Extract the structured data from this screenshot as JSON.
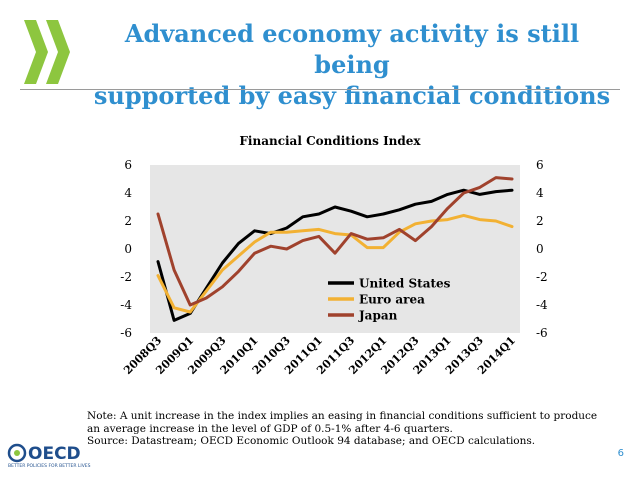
{
  "slide": {
    "title_line1": "Advanced economy activity is still being",
    "title_line2": "supported by easy financial conditions",
    "note_line1": "Note: A unit increase in the index implies an easing in financial conditions sufficient to produce",
    "note_line2": "an average increase in the level of GDP of 0.5-1% after 4-6 quarters.",
    "note_line3": "Source: Datastream; OECD Economic Outlook 94 database; and OECD calculations.",
    "logo_text": "OECD",
    "logo_tagline": "BETTER POLICIES FOR BETTER LIVES",
    "page_number": "6",
    "accent_color": "#2f8fcf"
  },
  "chart_data": {
    "type": "line",
    "title": "Financial Conditions Index",
    "xlabel": "",
    "ylabel": "",
    "ylim": [
      -6,
      6
    ],
    "yticks": [
      "6",
      "4",
      "2",
      "0",
      "-2",
      "-4",
      "-6"
    ],
    "grid": false,
    "legend_position": "bottom-right",
    "categories": [
      "2008Q3",
      "2008Q4",
      "2009Q1",
      "2009Q2",
      "2009Q3",
      "2009Q4",
      "2010Q1",
      "2010Q2",
      "2010Q3",
      "2010Q4",
      "2011Q1",
      "2011Q2",
      "2011Q3",
      "2011Q4",
      "2012Q1",
      "2012Q2",
      "2012Q3",
      "2012Q4",
      "2013Q1",
      "2013Q2",
      "2013Q3",
      "2013Q4",
      "2014Q1"
    ],
    "tick_labels": [
      "2008Q3",
      "2009Q1",
      "2009Q3",
      "2010Q1",
      "2010Q3",
      "2011Q1",
      "2011Q3",
      "2012Q1",
      "2012Q3",
      "2013Q1",
      "2013Q3",
      "2014Q1"
    ],
    "series": [
      {
        "name": "United States",
        "color": "#000000",
        "values": [
          -0.9,
          -5.1,
          -4.6,
          -2.8,
          -1.0,
          0.4,
          1.3,
          1.1,
          1.5,
          2.3,
          2.5,
          3.0,
          2.7,
          2.3,
          2.5,
          2.8,
          3.2,
          3.4,
          3.9,
          4.2,
          3.9,
          4.1,
          4.2
        ]
      },
      {
        "name": "Euro area",
        "color": "#f2b133",
        "values": [
          -1.9,
          -4.2,
          -4.5,
          -3.0,
          -1.5,
          -0.5,
          0.5,
          1.2,
          1.2,
          1.3,
          1.4,
          1.1,
          1.0,
          0.1,
          0.1,
          1.2,
          1.8,
          2.0,
          2.1,
          2.4,
          2.1,
          2.0,
          1.6
        ]
      },
      {
        "name": "Japan",
        "color": "#a0422d",
        "values": [
          2.5,
          -1.5,
          -4.0,
          -3.5,
          -2.7,
          -1.6,
          -0.3,
          0.2,
          0.0,
          0.6,
          0.9,
          -0.3,
          1.1,
          0.7,
          0.8,
          1.4,
          0.6,
          1.6,
          2.9,
          4.0,
          4.4,
          5.1,
          5.0
        ]
      }
    ]
  }
}
